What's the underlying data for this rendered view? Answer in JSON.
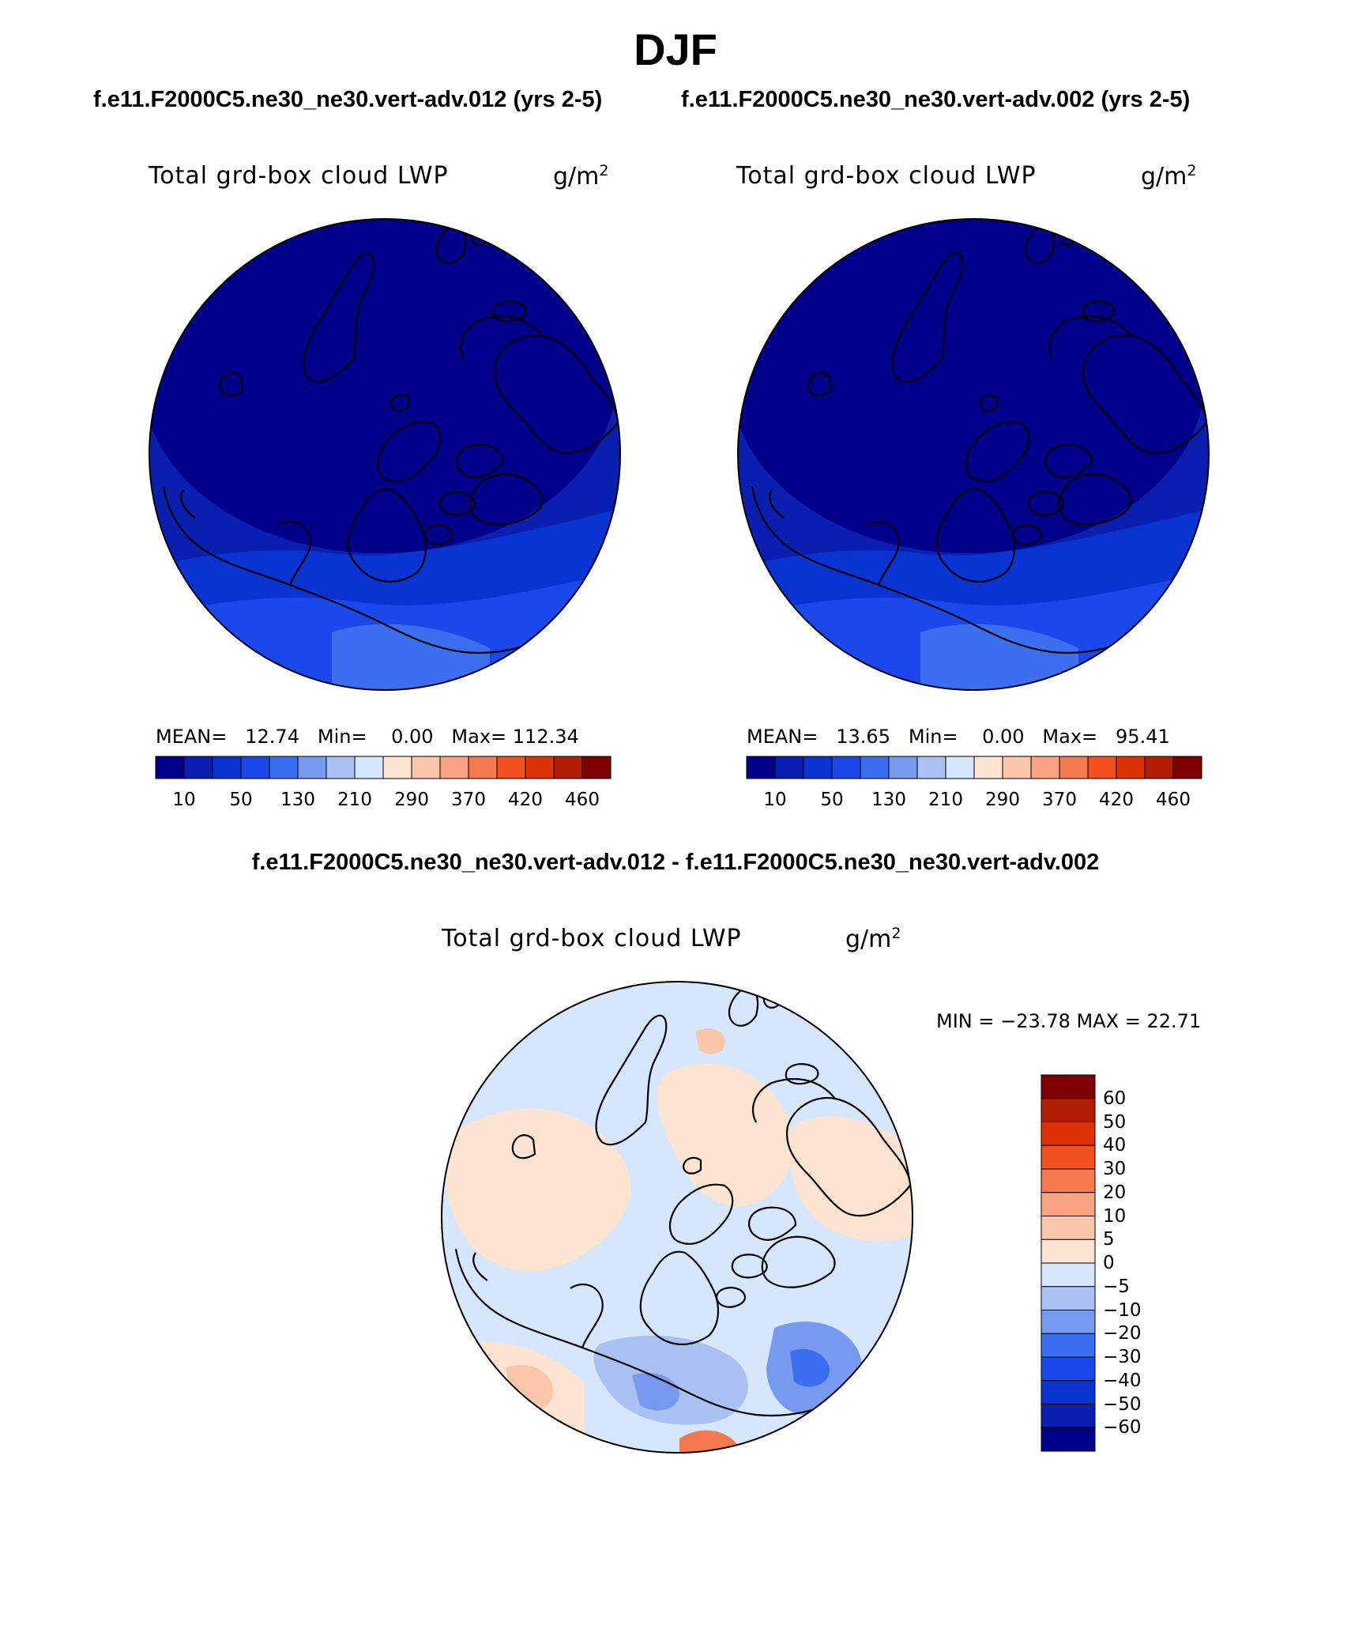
{
  "title": "DJF",
  "case_titles": [
    "f.e11.F2000C5.ne30_ne30.vert-adv.012 (yrs 2-5)",
    "f.e11.F2000C5.ne30_ne30.vert-adv.002 (yrs 2-5)"
  ],
  "diff_title": "f.e11.F2000C5.ne30_ne30.vert-adv.012 - f.e11.F2000C5.ne30_ne30.vert-adv.002",
  "panels": {
    "left": {
      "variable": "Total grd-box cloud LWP",
      "units_base": "g/m",
      "units_exp": "2",
      "stats": {
        "mean_label": "MEAN=",
        "mean": "12.74",
        "min_label": "Min=",
        "min": "0.00",
        "max_label": "Max=",
        "max": "112.34"
      }
    },
    "right": {
      "variable": "Total grd-box cloud LWP",
      "units_base": "g/m",
      "units_exp": "2",
      "stats": {
        "mean_label": "MEAN=",
        "mean": "13.65",
        "min_label": "Min=",
        "min": "0.00",
        "max_label": "Max=",
        "max": "95.41"
      }
    },
    "diff": {
      "variable": "Total grd-box cloud LWP",
      "units_base": "g/m",
      "units_exp": "2",
      "minmax": "MIN = −23.78 MAX =   22.71"
    }
  },
  "colorbar_main": {
    "colors": [
      "#00008b",
      "#0a1fb0",
      "#0a34d2",
      "#1a48ea",
      "#3c6ef0",
      "#7899f0",
      "#a9c0f3",
      "#d6e6fc",
      "#fde4d1",
      "#fcc6aa",
      "#fba483",
      "#f6784e",
      "#f2501e",
      "#de3306",
      "#b01d02",
      "#7f0000"
    ],
    "labels": [
      "10",
      "50",
      "130",
      "210",
      "290",
      "370",
      "420",
      "460"
    ]
  },
  "colorbar_diff": {
    "colors": [
      "#7f0000",
      "#b01d02",
      "#de3306",
      "#f2501e",
      "#f6784e",
      "#fba483",
      "#fcc6aa",
      "#fde4d1",
      "#d6e6fc",
      "#a9c0f3",
      "#7899f0",
      "#3c6ef0",
      "#1a48ea",
      "#0a34d2",
      "#0a1fb0",
      "#00008b"
    ],
    "labels": [
      "60",
      "50",
      "40",
      "30",
      "20",
      "10",
      "5",
      "0",
      "−5",
      "−10",
      "−20",
      "−30",
      "−40",
      "−50",
      "−60"
    ]
  }
}
